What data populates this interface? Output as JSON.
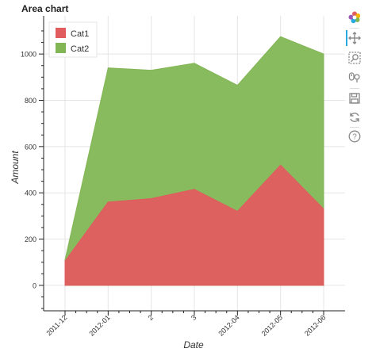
{
  "chart_data": {
    "type": "area",
    "title": "Area chart",
    "xlabel": "Date",
    "ylabel": "Amount",
    "categories": [
      "2011-12",
      "2012-01",
      "2",
      "3",
      "2012-04",
      "2012-05",
      "2012-06"
    ],
    "series": [
      {
        "name": "Cat1",
        "values": [
          105,
          360,
          375,
          415,
          320,
          520,
          330
        ],
        "color": "#e05c5f"
      },
      {
        "name": "Cat2",
        "values": [
          110,
          940,
          930,
          960,
          865,
          1075,
          1000
        ],
        "color": "#82b655"
      }
    ],
    "stacking": "overlay",
    "yticks": [
      0,
      200,
      400,
      600,
      800,
      1000
    ],
    "ylim": [
      -110,
      1165
    ],
    "grid": true,
    "legend_position": "top-left"
  },
  "toolbar": {
    "tools": [
      {
        "icon": "bokeh-logo-icon"
      },
      {
        "icon": "pan-icon"
      },
      {
        "icon": "box-zoom-icon"
      },
      {
        "icon": "wheel-zoom-icon"
      },
      {
        "icon": "save-icon"
      },
      {
        "icon": "reset-icon"
      },
      {
        "icon": "help-icon"
      }
    ],
    "active_color": "#26aae1"
  }
}
